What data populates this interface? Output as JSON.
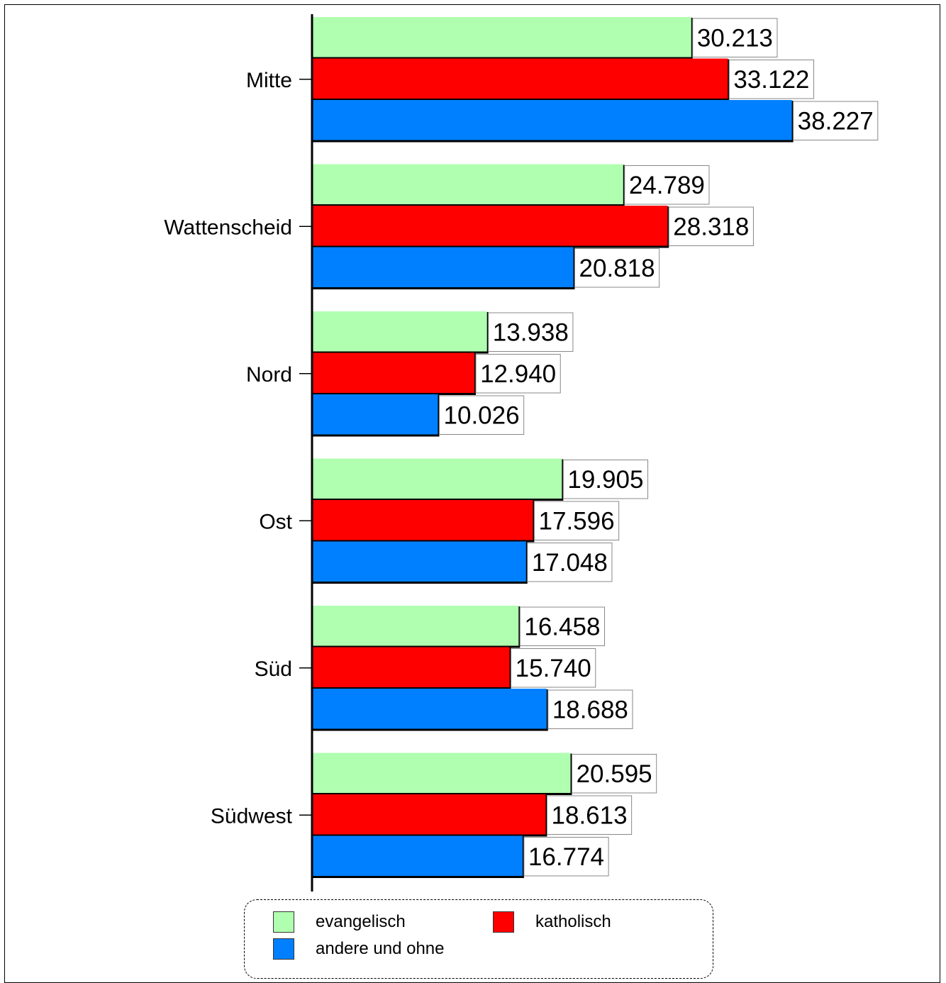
{
  "chart_data": {
    "type": "bar",
    "orientation": "horizontal",
    "categories": [
      "Mitte",
      "Wattenscheid",
      "Nord",
      "Ost",
      "Süd",
      "Südwest"
    ],
    "series": [
      {
        "name": "evangelisch",
        "color": "#b0ffb0",
        "values": [
          30213,
          24789,
          13938,
          19905,
          16458,
          20595
        ],
        "labels": [
          "30.213",
          "24.789",
          "13.938",
          "19.905",
          "16.458",
          "20.595"
        ]
      },
      {
        "name": "katholisch",
        "color": "#ff0000",
        "values": [
          33122,
          28318,
          12940,
          17596,
          15740,
          18613
        ],
        "labels": [
          "33.122",
          "28.318",
          "12.940",
          "17.596",
          "15.740",
          "18.613"
        ]
      },
      {
        "name": "andere und ohne",
        "color": "#0080ff",
        "values": [
          38227,
          20818,
          10026,
          17048,
          18688,
          16774
        ],
        "labels": [
          "38.227",
          "20.818",
          "10.026",
          "17.048",
          "18.688",
          "16.774"
        ]
      }
    ],
    "legend_position": "bottom",
    "grid": false
  },
  "legend": {
    "items": [
      "evangelisch",
      "katholisch",
      "andere und ohne"
    ]
  }
}
